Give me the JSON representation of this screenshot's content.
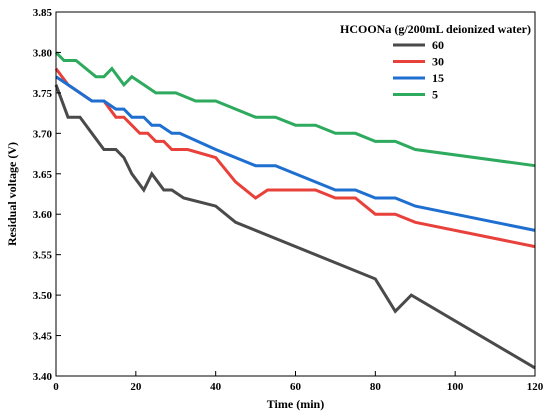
{
  "chart_data": {
    "type": "line",
    "xlabel": "Time (min)",
    "ylabel": "Residual voltage (V)",
    "xlim": [
      0,
      120
    ],
    "ylim": [
      3.4,
      3.85
    ],
    "x_ticks": [
      0,
      20,
      40,
      60,
      80,
      100,
      120
    ],
    "y_ticks": [
      3.4,
      3.45,
      3.5,
      3.55,
      3.6,
      3.65,
      3.7,
      3.75,
      3.8,
      3.85
    ],
    "x_tick_labels": [
      "0",
      "20",
      "40",
      "60",
      "80",
      "100",
      "120"
    ],
    "y_tick_labels": [
      "3.40",
      "3.45",
      "3.50",
      "3.55",
      "3.60",
      "3.65",
      "3.70",
      "3.75",
      "3.80",
      "3.85"
    ],
    "grid": false,
    "legend": {
      "title": "HCOONa (g/200mL deionized water)",
      "position": "top-right"
    },
    "series": [
      {
        "name": "60",
        "color": "#4a4a4a",
        "x": [
          0,
          3,
          6,
          9,
          12,
          15,
          17,
          19,
          22,
          24,
          27,
          29,
          32,
          40,
          45,
          80,
          85,
          89,
          120
        ],
        "y": [
          3.76,
          3.72,
          3.72,
          3.7,
          3.68,
          3.68,
          3.67,
          3.65,
          3.63,
          3.65,
          3.63,
          3.63,
          3.62,
          3.61,
          3.59,
          3.52,
          3.48,
          3.5,
          3.41
        ]
      },
      {
        "name": "30",
        "color": "#e8413b",
        "x": [
          0,
          3,
          6,
          9,
          12,
          15,
          17,
          19,
          21,
          23,
          25,
          27,
          29,
          33,
          40,
          45,
          50,
          53,
          56,
          62,
          65,
          70,
          75,
          80,
          85,
          90,
          120
        ],
        "y": [
          3.78,
          3.76,
          3.75,
          3.74,
          3.74,
          3.72,
          3.72,
          3.71,
          3.7,
          3.7,
          3.69,
          3.69,
          3.68,
          3.68,
          3.67,
          3.64,
          3.62,
          3.63,
          3.63,
          3.63,
          3.63,
          3.62,
          3.62,
          3.6,
          3.6,
          3.59,
          3.56
        ]
      },
      {
        "name": "15",
        "color": "#1f6fd1",
        "x": [
          0,
          3,
          6,
          9,
          12,
          15,
          17,
          19,
          22,
          24,
          26,
          29,
          31,
          40,
          50,
          55,
          70,
          75,
          80,
          85,
          90,
          120
        ],
        "y": [
          3.77,
          3.76,
          3.75,
          3.74,
          3.74,
          3.73,
          3.73,
          3.72,
          3.72,
          3.71,
          3.71,
          3.7,
          3.7,
          3.68,
          3.66,
          3.66,
          3.63,
          3.63,
          3.62,
          3.62,
          3.61,
          3.58
        ]
      },
      {
        "name": "5",
        "color": "#2eaa5e",
        "x": [
          0,
          2,
          5,
          10,
          12,
          14,
          17,
          19,
          22,
          25,
          30,
          35,
          40,
          50,
          55,
          60,
          65,
          70,
          75,
          80,
          85,
          90,
          120
        ],
        "y": [
          3.8,
          3.79,
          3.79,
          3.77,
          3.77,
          3.78,
          3.76,
          3.77,
          3.76,
          3.75,
          3.75,
          3.74,
          3.74,
          3.72,
          3.72,
          3.71,
          3.71,
          3.7,
          3.7,
          3.69,
          3.69,
          3.68,
          3.66
        ]
      }
    ]
  }
}
